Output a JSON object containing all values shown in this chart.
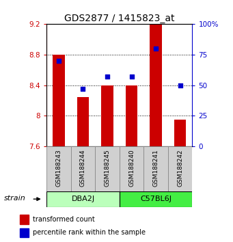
{
  "title": "GDS2877 / 1415823_at",
  "samples": [
    "GSM188243",
    "GSM188244",
    "GSM188245",
    "GSM188240",
    "GSM188241",
    "GSM188242"
  ],
  "group_names": [
    "DBA2J",
    "C57BL6J"
  ],
  "group_colors": [
    "#BBFFBB",
    "#44EE44"
  ],
  "group_ranges": [
    [
      0,
      3
    ],
    [
      3,
      6
    ]
  ],
  "bar_values": [
    8.8,
    8.25,
    8.4,
    8.4,
    9.2,
    7.95
  ],
  "dot_values": [
    70,
    47,
    57,
    57,
    80,
    50
  ],
  "bar_bottom": 7.6,
  "ylim_left": [
    7.6,
    9.2
  ],
  "ylim_right": [
    0,
    100
  ],
  "yticks_left": [
    7.6,
    8.0,
    8.4,
    8.8,
    9.2
  ],
  "ytick_labels_left": [
    "7.6",
    "8",
    "8.4",
    "8.8",
    "9.2"
  ],
  "yticks_right": [
    0,
    25,
    50,
    75,
    100
  ],
  "ytick_labels_right": [
    "0",
    "25",
    "50",
    "75",
    "100%"
  ],
  "bar_color": "#CC0000",
  "dot_color": "#0000CC",
  "grid_ticks": [
    8.0,
    8.4,
    8.8
  ],
  "legend_bar_label": "transformed count",
  "legend_dot_label": "percentile rank within the sample",
  "strain_label": "strain",
  "title_fontsize": 10,
  "tick_fontsize": 7.5,
  "sample_fontsize": 6.5,
  "group_fontsize": 8,
  "legend_fontsize": 7
}
